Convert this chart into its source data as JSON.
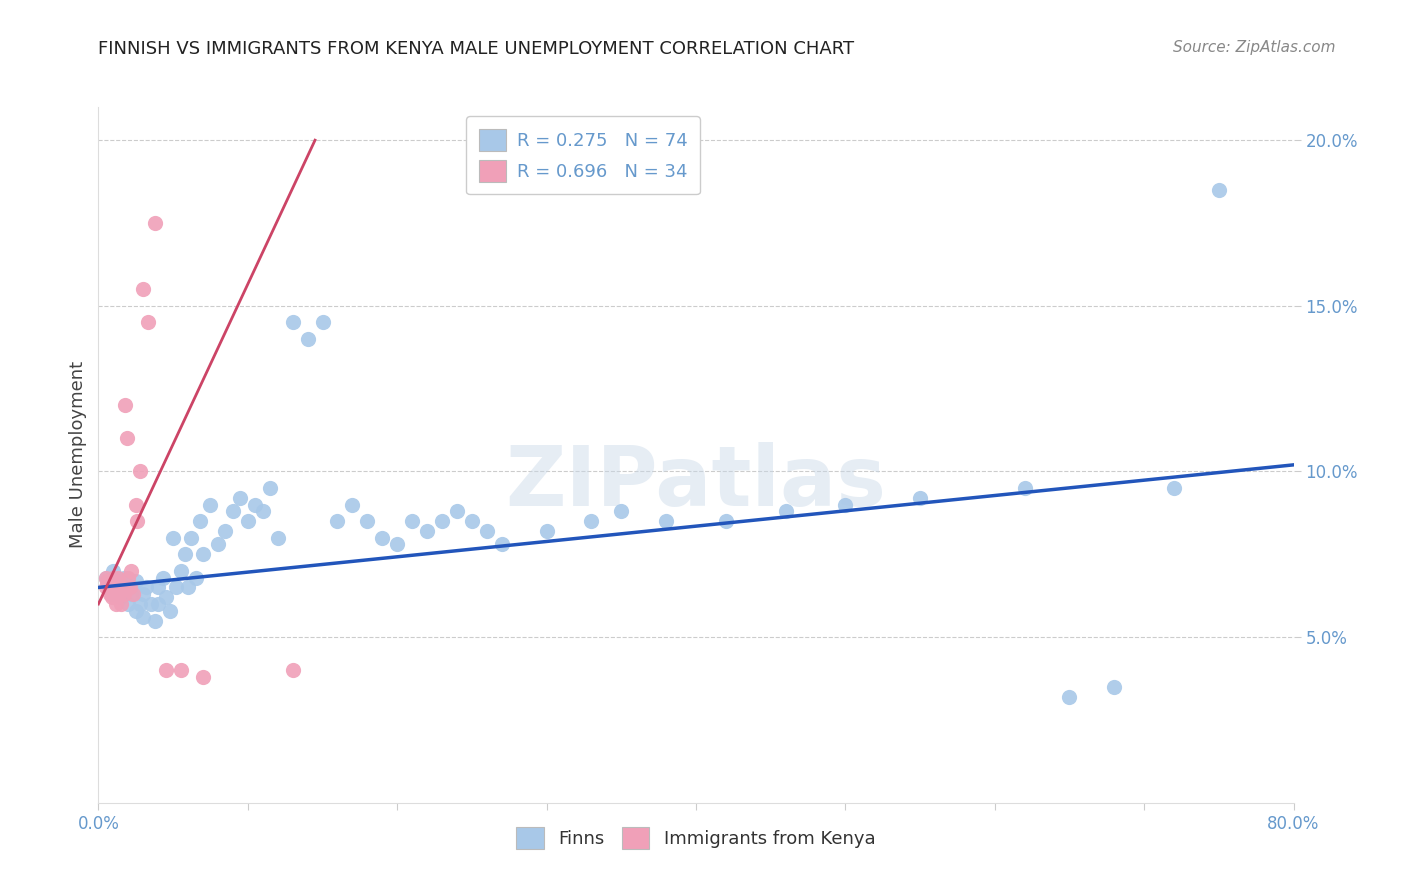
{
  "title": "FINNISH VS IMMIGRANTS FROM KENYA MALE UNEMPLOYMENT CORRELATION CHART",
  "source": "Source: ZipAtlas.com",
  "ylabel": "Male Unemployment",
  "xlim": [
    0.0,
    0.8
  ],
  "ylim": [
    0.0,
    0.21
  ],
  "yticks": [
    0.05,
    0.1,
    0.15,
    0.2
  ],
  "ytick_labels": [
    "5.0%",
    "10.0%",
    "15.0%",
    "20.0%"
  ],
  "xticks": [
    0.0,
    0.1,
    0.2,
    0.3,
    0.4,
    0.5,
    0.6,
    0.7,
    0.8
  ],
  "xtick_labels": [
    "0.0%",
    "",
    "",
    "",
    "",
    "",
    "",
    "",
    "80.0%"
  ],
  "legend_r1": "R = 0.275",
  "legend_n1": "N = 74",
  "legend_r2": "R = 0.696",
  "legend_n2": "N = 34",
  "blue_color": "#a8c8e8",
  "pink_color": "#f0a0b8",
  "blue_line_color": "#2255bb",
  "pink_line_color": "#cc4466",
  "title_color": "#222222",
  "axis_label_color": "#444444",
  "tick_color": "#6699cc",
  "watermark": "ZIPatlas",
  "finns_x": [
    0.005,
    0.008,
    0.01,
    0.01,
    0.012,
    0.013,
    0.015,
    0.015,
    0.017,
    0.018,
    0.02,
    0.02,
    0.022,
    0.022,
    0.025,
    0.025,
    0.028,
    0.03,
    0.03,
    0.032,
    0.035,
    0.038,
    0.04,
    0.04,
    0.043,
    0.045,
    0.048,
    0.05,
    0.052,
    0.055,
    0.058,
    0.06,
    0.062,
    0.065,
    0.068,
    0.07,
    0.075,
    0.08,
    0.085,
    0.09,
    0.095,
    0.1,
    0.105,
    0.11,
    0.115,
    0.12,
    0.13,
    0.14,
    0.15,
    0.16,
    0.17,
    0.18,
    0.19,
    0.2,
    0.21,
    0.22,
    0.23,
    0.24,
    0.25,
    0.26,
    0.27,
    0.3,
    0.33,
    0.35,
    0.38,
    0.42,
    0.46,
    0.5,
    0.55,
    0.62,
    0.65,
    0.68,
    0.72,
    0.75
  ],
  "finns_y": [
    0.068,
    0.065,
    0.07,
    0.063,
    0.067,
    0.065,
    0.065,
    0.062,
    0.068,
    0.064,
    0.067,
    0.06,
    0.065,
    0.063,
    0.067,
    0.058,
    0.06,
    0.063,
    0.056,
    0.065,
    0.06,
    0.055,
    0.065,
    0.06,
    0.068,
    0.062,
    0.058,
    0.08,
    0.065,
    0.07,
    0.075,
    0.065,
    0.08,
    0.068,
    0.085,
    0.075,
    0.09,
    0.078,
    0.082,
    0.088,
    0.092,
    0.085,
    0.09,
    0.088,
    0.095,
    0.08,
    0.145,
    0.14,
    0.145,
    0.085,
    0.09,
    0.085,
    0.08,
    0.078,
    0.085,
    0.082,
    0.085,
    0.088,
    0.085,
    0.082,
    0.078,
    0.082,
    0.085,
    0.088,
    0.085,
    0.085,
    0.088,
    0.09,
    0.092,
    0.095,
    0.032,
    0.035,
    0.095,
    0.185
  ],
  "kenya_x": [
    0.005,
    0.005,
    0.006,
    0.007,
    0.008,
    0.008,
    0.009,
    0.01,
    0.01,
    0.01,
    0.012,
    0.012,
    0.013,
    0.014,
    0.015,
    0.015,
    0.016,
    0.017,
    0.018,
    0.019,
    0.02,
    0.021,
    0.022,
    0.023,
    0.025,
    0.026,
    0.028,
    0.03,
    0.033,
    0.038,
    0.045,
    0.055,
    0.07,
    0.13
  ],
  "kenya_y": [
    0.068,
    0.065,
    0.067,
    0.065,
    0.063,
    0.065,
    0.062,
    0.065,
    0.068,
    0.063,
    0.065,
    0.06,
    0.068,
    0.063,
    0.065,
    0.06,
    0.065,
    0.063,
    0.12,
    0.11,
    0.068,
    0.065,
    0.07,
    0.063,
    0.09,
    0.085,
    0.1,
    0.155,
    0.145,
    0.175,
    0.04,
    0.04,
    0.038,
    0.04
  ],
  "blue_trend_x": [
    0.0,
    0.8
  ],
  "blue_trend_y": [
    0.065,
    0.102
  ],
  "pink_trend_x": [
    0.0,
    0.145
  ],
  "pink_trend_y": [
    0.06,
    0.2
  ]
}
